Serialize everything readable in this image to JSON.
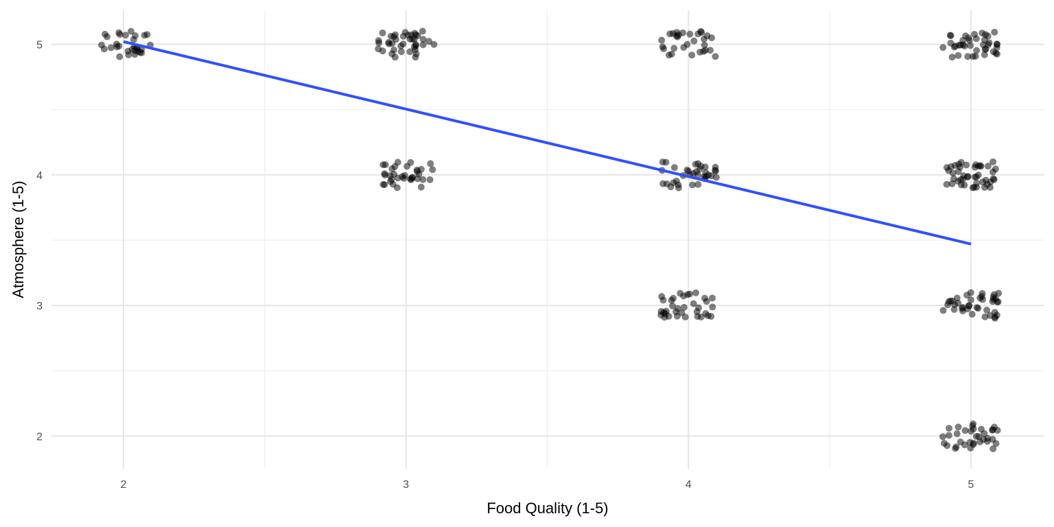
{
  "chart_data": {
    "type": "scatter",
    "title": "",
    "xlabel": "Food Quality (1-5)",
    "ylabel": "Atmosphere (1-5)",
    "xlim": [
      1.745,
      5.26
    ],
    "ylim": [
      1.75,
      5.26
    ],
    "x_ticks": [
      "2",
      "3",
      "4",
      "5"
    ],
    "y_ticks": [
      "2",
      "3",
      "4",
      "5"
    ],
    "grid": true,
    "jitter": {
      "width": 0.1,
      "height": 0.1
    },
    "point_color": "#000000",
    "point_alpha": 0.5,
    "clusters": [
      {
        "x": 2,
        "y": 5,
        "n": 30
      },
      {
        "x": 3,
        "y": 5,
        "n": 40
      },
      {
        "x": 3,
        "y": 4,
        "n": 35
      },
      {
        "x": 4,
        "y": 5,
        "n": 30
      },
      {
        "x": 4,
        "y": 4,
        "n": 35
      },
      {
        "x": 4,
        "y": 3,
        "n": 35
      },
      {
        "x": 5,
        "y": 5,
        "n": 40
      },
      {
        "x": 5,
        "y": 4,
        "n": 45
      },
      {
        "x": 5,
        "y": 3,
        "n": 40
      },
      {
        "x": 5,
        "y": 2,
        "n": 35
      }
    ],
    "trend_line": {
      "method": "lm",
      "color": "#3050ff",
      "x": [
        2,
        5
      ],
      "y": [
        5.02,
        3.47
      ]
    }
  }
}
